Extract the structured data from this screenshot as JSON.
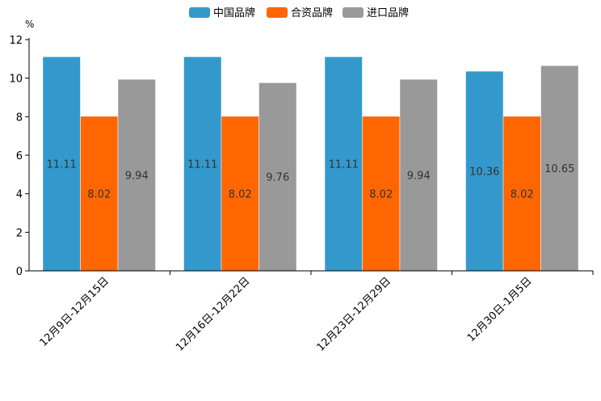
{
  "chart_data": {
    "type": "bar",
    "unit": "%",
    "categories": [
      "12月9日-12月15日",
      "12月16日-12月22日",
      "12月23日-12月29日",
      "12月30日-1月5日"
    ],
    "series": [
      {
        "name": "中国品牌",
        "color": "#3399cc",
        "values": [
          11.11,
          11.11,
          11.11,
          10.36
        ],
        "labels": [
          "11.11",
          "11.11",
          "11.11",
          "10.36"
        ]
      },
      {
        "name": "合资品牌",
        "color": "#ff6600",
        "values": [
          8.02,
          8.02,
          8.02,
          8.02
        ],
        "labels": [
          "8.02",
          "8.02",
          "8.02",
          "8.02"
        ]
      },
      {
        "name": "进口品牌",
        "color": "#999999",
        "values": [
          9.94,
          9.76,
          9.94,
          10.65
        ],
        "labels": [
          "9.94",
          "9.76",
          "9.94",
          "10.65"
        ]
      }
    ],
    "ylim": [
      0,
      12
    ],
    "yticks": [
      "0",
      "2",
      "4",
      "6",
      "8",
      "10",
      "12"
    ],
    "legend_position": "top-center",
    "grid": false
  }
}
